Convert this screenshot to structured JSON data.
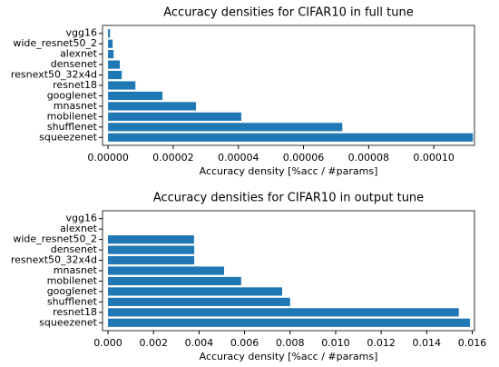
{
  "chart_data": [
    {
      "type": "barh",
      "title": "Accuracy densities for CIFAR10 in full tune",
      "x_label": "Accuracy density [%acc / #params]",
      "color": "#1f77b4",
      "categories": [
        "vgg16",
        "wide_resnet50_2",
        "alexnet",
        "densenet",
        "resnext50_32x4d",
        "resnet18",
        "googlenet",
        "mnasnet",
        "mobilenet",
        "shufflenet",
        "squeezenet"
      ],
      "values": [
        6e-07,
        1.4e-06,
        1.7e-06,
        3.6e-06,
        4.2e-06,
        8.4e-06,
        1.67e-05,
        2.7e-05,
        4.09e-05,
        7.19e-05,
        0.000112
      ],
      "xlim": [
        -1.7e-06,
        0.0001125
      ],
      "xticks": [
        {
          "value": 0,
          "label": "0.00000"
        },
        {
          "value": 2e-05,
          "label": "0.00002"
        },
        {
          "value": 4e-05,
          "label": "0.00004"
        },
        {
          "value": 6e-05,
          "label": "0.00006"
        },
        {
          "value": 8e-05,
          "label": "0.00008"
        },
        {
          "value": 0.0001,
          "label": "0.00010"
        }
      ]
    },
    {
      "type": "barh",
      "title": "Accuracy densities for CIFAR10 in output tune",
      "x_label": "Accuracy density [%acc / #params]",
      "color": "#1f77b4",
      "categories": [
        "vgg16",
        "alexnet",
        "wide_resnet50_2",
        "densenet",
        "resnext50_32x4d",
        "mnasnet",
        "mobilenet",
        "googlenet",
        "shufflenet",
        "resnet18",
        "squeezenet"
      ],
      "values": [
        0,
        0,
        0.00378,
        0.00379,
        0.00379,
        0.0051,
        0.00585,
        0.00765,
        0.008,
        0.01541,
        0.0159
      ],
      "xlim": [
        -0.00024,
        0.0161
      ],
      "xticks": [
        {
          "value": 0,
          "label": "0.000"
        },
        {
          "value": 0.002,
          "label": "0.002"
        },
        {
          "value": 0.004,
          "label": "0.004"
        },
        {
          "value": 0.006,
          "label": "0.006"
        },
        {
          "value": 0.008,
          "label": "0.008"
        },
        {
          "value": 0.01,
          "label": "0.010"
        },
        {
          "value": 0.012,
          "label": "0.012"
        },
        {
          "value": 0.014,
          "label": "0.014"
        },
        {
          "value": 0.016,
          "label": "0.016"
        }
      ]
    }
  ]
}
